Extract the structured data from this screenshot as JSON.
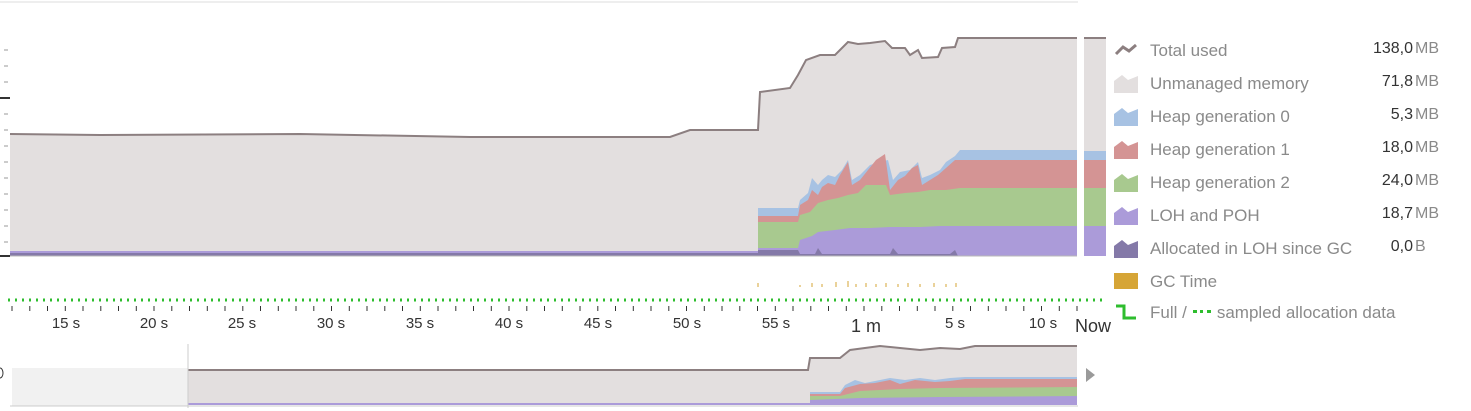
{
  "timeline": {
    "ticks": [
      "15 s",
      "20 s",
      "25 s",
      "30 s",
      "35 s",
      "40 s",
      "45 s",
      "50 s",
      "55 s",
      "1 m",
      "5 s",
      "10 s",
      "Now"
    ]
  },
  "legend": {
    "items": [
      {
        "id": "total",
        "label": "Total used",
        "value": "138,0",
        "unit": "MB",
        "color": "#8c7f80",
        "icon": "line-swatch-icon"
      },
      {
        "id": "unmanaged",
        "label": "Unmanaged memory",
        "value": "71,8",
        "unit": "MB",
        "color": "#e3dfdf",
        "icon": "area-swatch-icon"
      },
      {
        "id": "gen0",
        "label": "Heap generation 0",
        "value": "5,3",
        "unit": "MB",
        "color": "#a7c2e3",
        "icon": "area-swatch-icon"
      },
      {
        "id": "gen1",
        "label": "Heap generation 1",
        "value": "18,0",
        "unit": "MB",
        "color": "#d49494",
        "icon": "area-swatch-icon"
      },
      {
        "id": "gen2",
        "label": "Heap generation 2",
        "value": "24,0",
        "unit": "MB",
        "color": "#a8c98f",
        "icon": "area-swatch-icon"
      },
      {
        "id": "loh",
        "label": "LOH and POH",
        "value": "18,7",
        "unit": "MB",
        "color": "#ab9bd9",
        "icon": "area-swatch-icon"
      },
      {
        "id": "loh_alloc",
        "label": "Allocated in LOH since GC",
        "value": "0,0",
        "unit": "B",
        "color": "#8479a8",
        "icon": "area-swatch-icon"
      },
      {
        "id": "gc",
        "label": "GC Time",
        "value": "",
        "unit": "",
        "color": "#d6a536",
        "icon": "square-swatch-icon"
      }
    ],
    "full_sampled": {
      "full": "Full /",
      "sampled": "sampled allocation data",
      "color": "#2ebd2e"
    }
  }
}
